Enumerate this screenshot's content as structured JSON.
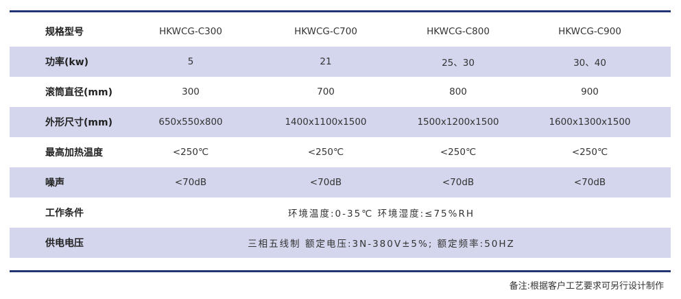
{
  "rows": [
    {
      "label": "规格型号",
      "values": [
        "HKWCG-C300",
        "HKWCG-C700",
        "HKWCG-C800",
        "HKWCG-C900"
      ]
    },
    {
      "label": "功率(kw)",
      "values": [
        "5",
        "21",
        "25、30",
        "30、40"
      ]
    },
    {
      "label": "滚筒直径(mm)",
      "values": [
        "300",
        "700",
        "800",
        "900"
      ]
    },
    {
      "label": "外形尺寸(mm)",
      "values": [
        "650x550x800",
        "1400x1100x1500",
        "1500x1200x1500",
        "1600x1300x1500"
      ]
    },
    {
      "label": "最高加热温度",
      "values": [
        "<250℃",
        "<250℃",
        "<250℃",
        "<250℃"
      ]
    },
    {
      "label": "噪声",
      "values": [
        "<70dB",
        "<70dB",
        "<70dB",
        "<70dB"
      ]
    },
    {
      "label": "工作条件",
      "span": "环境温度:0-35℃ 环境湿度:≤75%RH"
    },
    {
      "label": "供电电压",
      "span": "三相五线制 额定电压:3N-380V±5%; 额定频率:50HZ"
    }
  ],
  "note": "备注:根据客户工艺要求可另行设计制作",
  "colors": {
    "rule": "#1f3470",
    "shade": "#d3d6ec"
  }
}
